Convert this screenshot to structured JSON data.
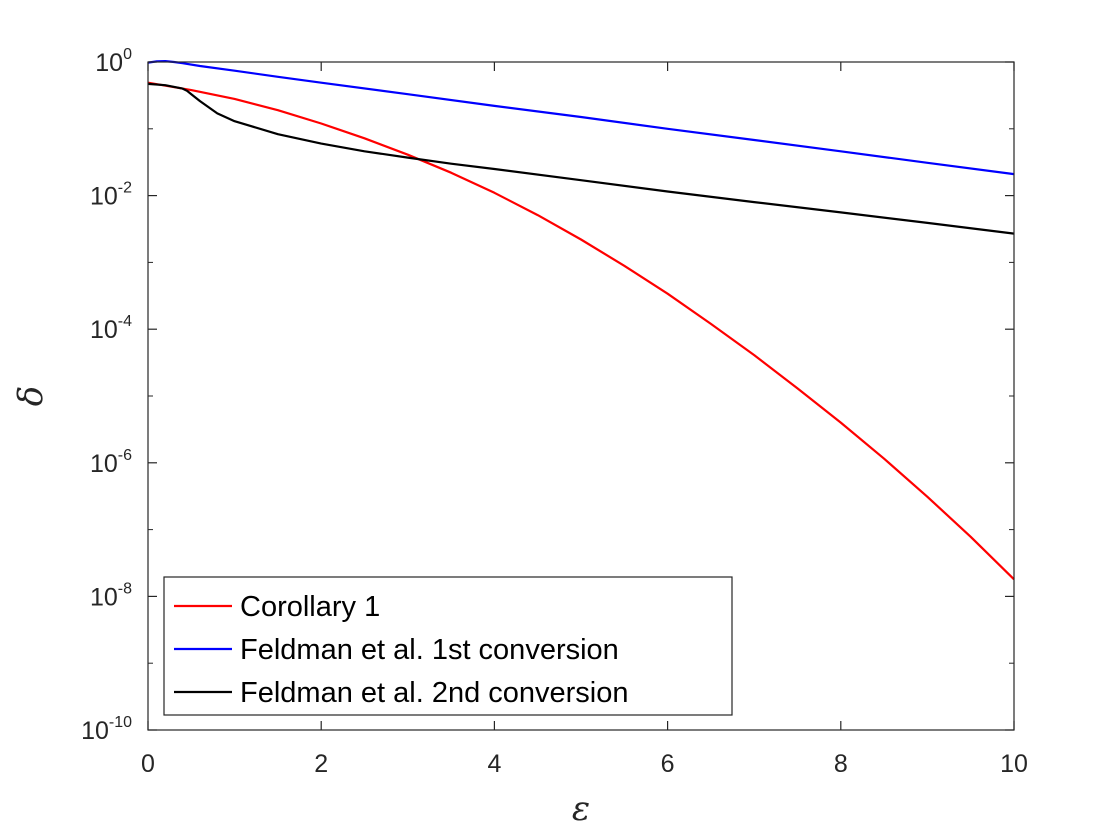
{
  "chart_data": {
    "type": "line",
    "title": "",
    "xlabel": "ε",
    "ylabel": "δ",
    "xlim": [
      0,
      10
    ],
    "ylim": [
      1e-10,
      1
    ],
    "yscale": "log",
    "grid": false,
    "legend_position": "bottom-left",
    "x_ticks": [
      {
        "value": 0,
        "label": "0"
      },
      {
        "value": 2,
        "label": "2"
      },
      {
        "value": 4,
        "label": "4"
      },
      {
        "value": 6,
        "label": "6"
      },
      {
        "value": 8,
        "label": "8"
      },
      {
        "value": 10,
        "label": "10"
      }
    ],
    "y_ticks": [
      {
        "value": 1e-10,
        "base": "10",
        "exp": "-10"
      },
      {
        "value": 1e-08,
        "base": "10",
        "exp": "-8"
      },
      {
        "value": 1e-06,
        "base": "10",
        "exp": "-6"
      },
      {
        "value": 0.0001,
        "base": "10",
        "exp": "-4"
      },
      {
        "value": 0.01,
        "base": "10",
        "exp": "-2"
      },
      {
        "value": 1,
        "base": "10",
        "exp": "0"
      }
    ],
    "series": [
      {
        "name": "Corollary 1",
        "color": "#ff0000",
        "x": [
          0,
          0.5,
          1,
          1.5,
          2,
          2.5,
          3,
          3.5,
          4,
          4.5,
          5,
          5.5,
          6,
          6.5,
          7,
          7.5,
          8,
          8.5,
          9,
          9.5,
          10
        ],
        "y": [
          0.49,
          0.38,
          0.28,
          0.19,
          0.12,
          0.072,
          0.041,
          0.022,
          0.011,
          0.0051,
          0.0022,
          0.00089,
          0.00034,
          0.00012,
          4.1e-05,
          1.3e-05,
          4e-06,
          1.15e-06,
          3.1e-07,
          7.8e-08,
          1.8e-08
        ]
      },
      {
        "name": "Feldman et al. 1st conversion",
        "color": "#0000ff",
        "x": [
          0,
          0.1,
          0.2,
          0.3,
          0.4,
          0.6,
          1,
          1.5,
          2,
          3,
          4,
          5,
          6,
          7,
          8,
          9,
          10
        ],
        "y": [
          0.98,
          1.02,
          1.03,
          1.0,
          0.96,
          0.87,
          0.74,
          0.6,
          0.49,
          0.33,
          0.22,
          0.15,
          0.1,
          0.068,
          0.046,
          0.031,
          0.021
        ]
      },
      {
        "name": "Feldman et al. 2nd conversion",
        "color": "#000000",
        "x": [
          0,
          0.2,
          0.4,
          0.45,
          0.5,
          0.6,
          0.8,
          1,
          1.5,
          2,
          2.5,
          3,
          3.5,
          4,
          5,
          6,
          7,
          8,
          9,
          10
        ],
        "y": [
          0.47,
          0.45,
          0.4,
          0.37,
          0.33,
          0.26,
          0.17,
          0.13,
          0.083,
          0.06,
          0.046,
          0.037,
          0.03,
          0.025,
          0.017,
          0.0115,
          0.008,
          0.0056,
          0.0039,
          0.0027
        ]
      }
    ]
  }
}
